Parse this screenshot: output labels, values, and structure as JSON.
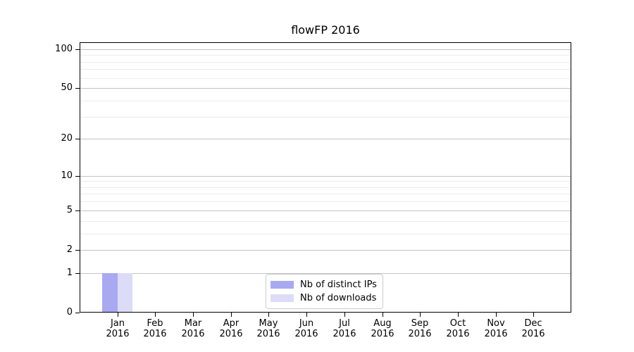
{
  "chart_data": {
    "type": "bar",
    "title": "flowFP 2016",
    "categories": [
      "Jan 2016",
      "Feb 2016",
      "Mar 2016",
      "Apr 2016",
      "May 2016",
      "Jun 2016",
      "Jul 2016",
      "Aug 2016",
      "Sep 2016",
      "Oct 2016",
      "Nov 2016",
      "Dec 2016"
    ],
    "series": [
      {
        "name": "Nb of distinct IPs",
        "color": "#a9a9f1",
        "values": [
          1,
          0,
          0,
          0,
          0,
          0,
          0,
          0,
          0,
          0,
          0,
          0
        ]
      },
      {
        "name": "Nb of downloads",
        "color": "#dcdcf8",
        "values": [
          1,
          0,
          0,
          0,
          0,
          0,
          0,
          0,
          0,
          0,
          0,
          0
        ]
      }
    ],
    "xlabel": "",
    "ylabel": "",
    "yscale": "log1p",
    "ylim": [
      0,
      113
    ],
    "yticks": [
      0,
      1,
      2,
      5,
      10,
      20,
      50,
      100
    ],
    "y_minor_ticks": [
      3,
      4,
      6,
      7,
      8,
      9,
      30,
      40,
      60,
      70,
      80,
      90
    ],
    "grid": "horizontal",
    "legend_position": "lower center",
    "colors": {
      "major_grid": "#c3c3c3",
      "minor_grid": "#ececec",
      "axis": "#000000",
      "background": "#ffffff"
    }
  }
}
